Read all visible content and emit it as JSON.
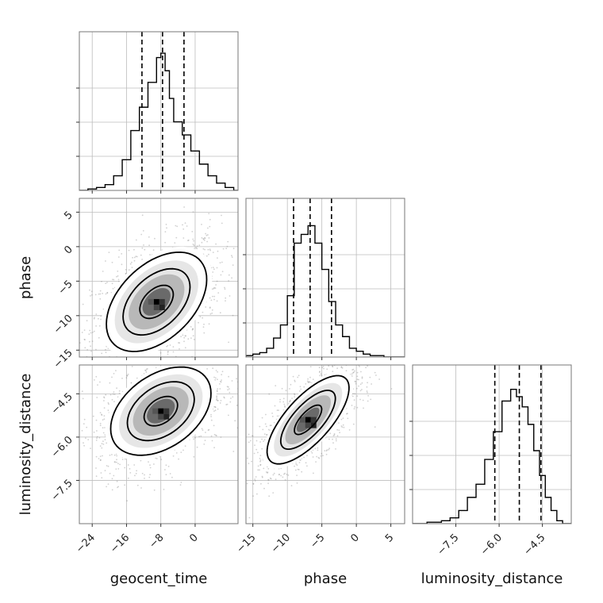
{
  "chart_data": {
    "type": "corner",
    "parameters": [
      "geocent_time",
      "phase",
      "luminosity_distance"
    ],
    "grid": true,
    "quantile_lines": "dashed",
    "axes": {
      "geocent_time": {
        "range": [
          -27,
          10
        ],
        "ticks": [
          -24,
          -16,
          -8,
          0
        ],
        "tick_labels": [
          "−24",
          "−16",
          "−8",
          "0"
        ]
      },
      "phase": {
        "range": [
          -16,
          7
        ],
        "ticks": [
          -15,
          -10,
          -5,
          0,
          5
        ],
        "tick_labels": [
          "−15",
          "−10",
          "−5",
          "0",
          "5"
        ]
      },
      "luminosity_distance": {
        "range": [
          -9.0,
          -3.5
        ],
        "ticks": [
          -7.5,
          -6.0,
          -4.5
        ],
        "tick_labels": [
          "−7.5",
          "−6.0",
          "−4.5"
        ]
      }
    },
    "marginals": [
      {
        "parameter": "geocent_time",
        "quantiles": [
          -12.4,
          -7.6,
          -2.6
        ],
        "bins": [
          -27,
          -25,
          -23,
          -21,
          -19,
          -17,
          -15,
          -13,
          -11,
          -9,
          -8,
          -7,
          -6,
          -5,
          -3,
          -1,
          1,
          3,
          5,
          7,
          9,
          10
        ],
        "counts": [
          0,
          1,
          2,
          4,
          10,
          21,
          41,
          57,
          74,
          91,
          94,
          82,
          63,
          47,
          38,
          27,
          18,
          10,
          5,
          2,
          0
        ],
        "ymax": 100
      },
      {
        "parameter": "phase",
        "quantiles": [
          -9.1,
          -6.7,
          -3.6
        ],
        "bins": [
          -16,
          -15,
          -14,
          -13,
          -12,
          -11,
          -10,
          -9,
          -8,
          -7,
          -6,
          -5,
          -4,
          -3,
          -2,
          -1,
          0,
          1,
          2,
          3,
          4,
          7
        ],
        "counts": [
          1,
          2,
          3,
          6,
          13,
          22,
          42,
          78,
          84,
          90,
          78,
          60,
          38,
          22,
          14,
          6,
          4,
          2,
          1,
          1,
          0
        ],
        "ymax": 100
      },
      {
        "parameter": "luminosity_distance",
        "quantiles": [
          -6.15,
          -5.3,
          -4.55
        ],
        "bins": [
          -9.0,
          -8.5,
          -8.0,
          -7.7,
          -7.4,
          -7.1,
          -6.8,
          -6.5,
          -6.2,
          -5.9,
          -5.6,
          -5.4,
          -5.2,
          -5.0,
          -4.8,
          -4.6,
          -4.4,
          -4.2,
          -4.0,
          -3.8,
          -3.5
        ],
        "counts": [
          0,
          1,
          2,
          4,
          9,
          18,
          27,
          44,
          63,
          84,
          92,
          87,
          80,
          68,
          50,
          33,
          18,
          9,
          2,
          0
        ],
        "ymax": 100
      }
    ],
    "pairs": [
      {
        "x": "geocent_time",
        "y": "phase",
        "peak": [
          -9,
          -8
        ],
        "spread": [
          6.5,
          4.0
        ],
        "correlation": 0.45
      },
      {
        "x": "geocent_time",
        "y": "luminosity_distance",
        "peak": [
          -8,
          -5.1
        ],
        "spread": [
          6.5,
          0.85
        ],
        "correlation": 0.4
      },
      {
        "x": "phase",
        "y": "luminosity_distance",
        "peak": [
          -7,
          -5.4
        ],
        "spread": [
          3.3,
          0.85
        ],
        "correlation": 0.72
      }
    ],
    "contour_levels_sigma": [
      0.5,
      1.0,
      1.5,
      2.0
    ]
  }
}
